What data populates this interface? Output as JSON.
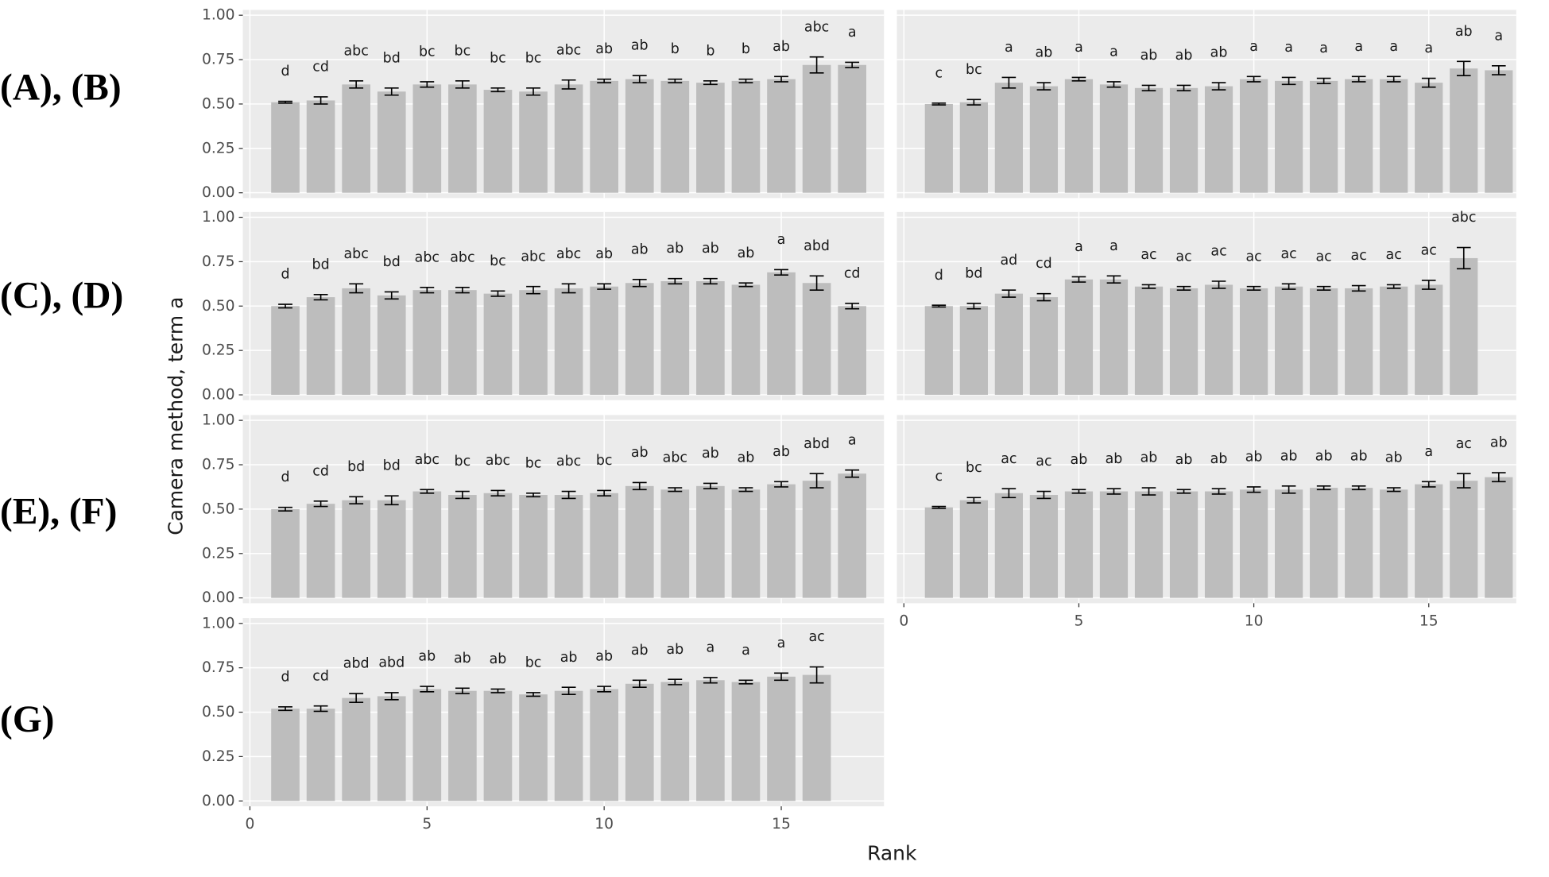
{
  "row_labels": [
    "(A), (B)",
    "(C), (D)",
    "(E), (F)",
    "(G)"
  ],
  "axis_labels": {
    "x": "Rank",
    "y": "Camera method, term a"
  },
  "chart_data": [
    {
      "type": "bar",
      "x": [
        1,
        2,
        3,
        4,
        5,
        6,
        7,
        8,
        9,
        10,
        11,
        12,
        13,
        14,
        15,
        16,
        17
      ],
      "values": [
        0.51,
        0.52,
        0.61,
        0.57,
        0.61,
        0.61,
        0.58,
        0.57,
        0.61,
        0.63,
        0.64,
        0.63,
        0.62,
        0.63,
        0.64,
        0.72,
        0.72
      ],
      "errors": [
        0.005,
        0.02,
        0.02,
        0.02,
        0.015,
        0.02,
        0.01,
        0.02,
        0.025,
        0.01,
        0.02,
        0.01,
        0.01,
        0.01,
        0.015,
        0.045,
        0.015
      ],
      "annotations": [
        "d",
        "cd",
        "abc",
        "bd",
        "bc",
        "bc",
        "bc",
        "bc",
        "abc",
        "ab",
        "ab",
        "b",
        "b",
        "b",
        "ab",
        "abc",
        "a"
      ],
      "color": "#bdbdbd",
      "xlim": [
        -0.2,
        17.9
      ],
      "ylim": [
        -0.03,
        1.03
      ],
      "xticks": [
        0,
        5,
        10,
        15
      ],
      "yticks": [
        {
          "value": 0,
          "label": "0.00"
        },
        {
          "value": 0.25,
          "label": "0.25"
        },
        {
          "value": 0.5,
          "label": "0.50"
        },
        {
          "value": 0.75,
          "label": "0.75"
        },
        {
          "value": 1,
          "label": "1.00"
        }
      ],
      "show_ytick_labels": true,
      "show_xtick_labels": false,
      "grid": true
    },
    {
      "type": "bar",
      "x": [
        1,
        2,
        3,
        4,
        5,
        6,
        7,
        8,
        9,
        10,
        11,
        12,
        13,
        14,
        15,
        16,
        17
      ],
      "values": [
        0.5,
        0.51,
        0.62,
        0.6,
        0.64,
        0.61,
        0.59,
        0.59,
        0.6,
        0.64,
        0.63,
        0.63,
        0.64,
        0.64,
        0.62,
        0.7,
        0.69
      ],
      "errors": [
        0.005,
        0.015,
        0.03,
        0.02,
        0.01,
        0.015,
        0.015,
        0.015,
        0.02,
        0.015,
        0.02,
        0.015,
        0.015,
        0.015,
        0.025,
        0.04,
        0.025
      ],
      "annotations": [
        "c",
        "bc",
        "a",
        "ab",
        "a",
        "a",
        "ab",
        "ab",
        "ab",
        "a",
        "a",
        "a",
        "a",
        "a",
        "a",
        "ab",
        "a"
      ],
      "color": "#bdbdbd",
      "xlim": [
        -0.2,
        17.5
      ],
      "ylim": [
        -0.03,
        1.03
      ],
      "xticks": [
        0,
        5,
        10,
        15
      ],
      "yticks": [
        {
          "value": 0,
          "label": "0.00"
        },
        {
          "value": 0.25,
          "label": "0.25"
        },
        {
          "value": 0.5,
          "label": "0.50"
        },
        {
          "value": 0.75,
          "label": "0.75"
        },
        {
          "value": 1,
          "label": "1.00"
        }
      ],
      "show_ytick_labels": false,
      "show_xtick_labels": false,
      "grid": true
    },
    {
      "type": "bar",
      "x": [
        1,
        2,
        3,
        4,
        5,
        6,
        7,
        8,
        9,
        10,
        11,
        12,
        13,
        14,
        15,
        16,
        17
      ],
      "values": [
        0.5,
        0.55,
        0.6,
        0.56,
        0.59,
        0.59,
        0.57,
        0.59,
        0.6,
        0.61,
        0.63,
        0.64,
        0.64,
        0.62,
        0.69,
        0.63,
        0.5
      ],
      "errors": [
        0.01,
        0.015,
        0.025,
        0.02,
        0.015,
        0.015,
        0.015,
        0.02,
        0.025,
        0.015,
        0.02,
        0.015,
        0.015,
        0.01,
        0.015,
        0.04,
        0.015
      ],
      "annotations": [
        "d",
        "bd",
        "abc",
        "bd",
        "abc",
        "abc",
        "bc",
        "abc",
        "abc",
        "ab",
        "ab",
        "ab",
        "ab",
        "ab",
        "a",
        "abd",
        "cd"
      ],
      "color": "#bdbdbd",
      "xlim": [
        -0.2,
        17.9
      ],
      "ylim": [
        -0.03,
        1.03
      ],
      "xticks": [
        0,
        5,
        10,
        15
      ],
      "yticks": [
        {
          "value": 0,
          "label": "0.00"
        },
        {
          "value": 0.25,
          "label": "0.25"
        },
        {
          "value": 0.5,
          "label": "0.50"
        },
        {
          "value": 0.75,
          "label": "0.75"
        },
        {
          "value": 1,
          "label": "1.00"
        }
      ],
      "show_ytick_labels": true,
      "show_xtick_labels": false,
      "grid": true
    },
    {
      "type": "bar",
      "x": [
        1,
        2,
        3,
        4,
        5,
        6,
        7,
        8,
        9,
        10,
        11,
        12,
        13,
        14,
        15,
        16
      ],
      "values": [
        0.5,
        0.5,
        0.57,
        0.55,
        0.65,
        0.65,
        0.61,
        0.6,
        0.62,
        0.6,
        0.61,
        0.6,
        0.6,
        0.61,
        0.62,
        0.77
      ],
      "errors": [
        0.005,
        0.015,
        0.02,
        0.02,
        0.015,
        0.02,
        0.01,
        0.01,
        0.02,
        0.01,
        0.015,
        0.01,
        0.015,
        0.01,
        0.025,
        0.06
      ],
      "annotations": [
        "d",
        "bd",
        "ad",
        "cd",
        "a",
        "a",
        "ac",
        "ac",
        "ac",
        "ac",
        "ac",
        "ac",
        "ac",
        "ac",
        "ac",
        "abc"
      ],
      "color": "#bdbdbd",
      "xlim": [
        -0.2,
        17.5
      ],
      "ylim": [
        -0.03,
        1.03
      ],
      "xticks": [
        0,
        5,
        10,
        15
      ],
      "yticks": [
        {
          "value": 0,
          "label": "0.00"
        },
        {
          "value": 0.25,
          "label": "0.25"
        },
        {
          "value": 0.5,
          "label": "0.50"
        },
        {
          "value": 0.75,
          "label": "0.75"
        },
        {
          "value": 1,
          "label": "1.00"
        }
      ],
      "show_ytick_labels": false,
      "show_xtick_labels": false,
      "grid": true
    },
    {
      "type": "bar",
      "x": [
        1,
        2,
        3,
        4,
        5,
        6,
        7,
        8,
        9,
        10,
        11,
        12,
        13,
        14,
        15,
        16,
        17
      ],
      "values": [
        0.5,
        0.53,
        0.55,
        0.55,
        0.6,
        0.58,
        0.59,
        0.58,
        0.58,
        0.59,
        0.63,
        0.61,
        0.63,
        0.61,
        0.64,
        0.66,
        0.7
      ],
      "errors": [
        0.01,
        0.015,
        0.02,
        0.025,
        0.01,
        0.02,
        0.015,
        0.01,
        0.02,
        0.015,
        0.02,
        0.01,
        0.015,
        0.01,
        0.015,
        0.04,
        0.02
      ],
      "annotations": [
        "d",
        "cd",
        "bd",
        "bd",
        "abc",
        "bc",
        "abc",
        "bc",
        "abc",
        "bc",
        "ab",
        "abc",
        "ab",
        "ab",
        "ab",
        "abd",
        "a"
      ],
      "color": "#bdbdbd",
      "xlim": [
        -0.2,
        17.9
      ],
      "ylim": [
        -0.03,
        1.03
      ],
      "xticks": [
        0,
        5,
        10,
        15
      ],
      "yticks": [
        {
          "value": 0,
          "label": "0.00"
        },
        {
          "value": 0.25,
          "label": "0.25"
        },
        {
          "value": 0.5,
          "label": "0.50"
        },
        {
          "value": 0.75,
          "label": "0.75"
        },
        {
          "value": 1,
          "label": "1.00"
        }
      ],
      "show_ytick_labels": true,
      "show_xtick_labels": false,
      "grid": true
    },
    {
      "type": "bar",
      "x": [
        1,
        2,
        3,
        4,
        5,
        6,
        7,
        8,
        9,
        10,
        11,
        12,
        13,
        14,
        15,
        16,
        17
      ],
      "values": [
        0.51,
        0.55,
        0.59,
        0.58,
        0.6,
        0.6,
        0.6,
        0.6,
        0.6,
        0.61,
        0.61,
        0.62,
        0.62,
        0.61,
        0.64,
        0.66,
        0.68
      ],
      "errors": [
        0.005,
        0.015,
        0.025,
        0.02,
        0.01,
        0.015,
        0.02,
        0.01,
        0.015,
        0.015,
        0.02,
        0.01,
        0.01,
        0.01,
        0.015,
        0.04,
        0.025
      ],
      "annotations": [
        "c",
        "bc",
        "ac",
        "ac",
        "ab",
        "ab",
        "ab",
        "ab",
        "ab",
        "ab",
        "ab",
        "ab",
        "ab",
        "ab",
        "a",
        "ac",
        "ab"
      ],
      "color": "#bdbdbd",
      "xlim": [
        -0.2,
        17.5
      ],
      "ylim": [
        -0.03,
        1.03
      ],
      "xticks": [
        0,
        5,
        10,
        15
      ],
      "yticks": [
        {
          "value": 0,
          "label": "0.00"
        },
        {
          "value": 0.25,
          "label": "0.25"
        },
        {
          "value": 0.5,
          "label": "0.50"
        },
        {
          "value": 0.75,
          "label": "0.75"
        },
        {
          "value": 1,
          "label": "1.00"
        }
      ],
      "show_ytick_labels": false,
      "show_xtick_labels": true,
      "grid": true
    },
    {
      "type": "bar",
      "x": [
        1,
        2,
        3,
        4,
        5,
        6,
        7,
        8,
        9,
        10,
        11,
        12,
        13,
        14,
        15,
        16
      ],
      "values": [
        0.52,
        0.52,
        0.58,
        0.59,
        0.63,
        0.62,
        0.62,
        0.6,
        0.62,
        0.63,
        0.66,
        0.67,
        0.68,
        0.67,
        0.7,
        0.71
      ],
      "errors": [
        0.01,
        0.015,
        0.025,
        0.02,
        0.015,
        0.015,
        0.01,
        0.01,
        0.02,
        0.015,
        0.02,
        0.015,
        0.015,
        0.01,
        0.02,
        0.045
      ],
      "annotations": [
        "d",
        "cd",
        "abd",
        "abd",
        "ab",
        "ab",
        "ab",
        "bc",
        "ab",
        "ab",
        "ab",
        "ab",
        "a",
        "a",
        "a",
        "ac"
      ],
      "color": "#bdbdbd",
      "xlim": [
        -0.2,
        17.9
      ],
      "ylim": [
        -0.03,
        1.03
      ],
      "xticks": [
        0,
        5,
        10,
        15
      ],
      "yticks": [
        {
          "value": 0,
          "label": "0.00"
        },
        {
          "value": 0.25,
          "label": "0.25"
        },
        {
          "value": 0.5,
          "label": "0.50"
        },
        {
          "value": 0.75,
          "label": "0.75"
        },
        {
          "value": 1,
          "label": "1.00"
        }
      ],
      "show_ytick_labels": true,
      "show_xtick_labels": true,
      "grid": true
    }
  ]
}
